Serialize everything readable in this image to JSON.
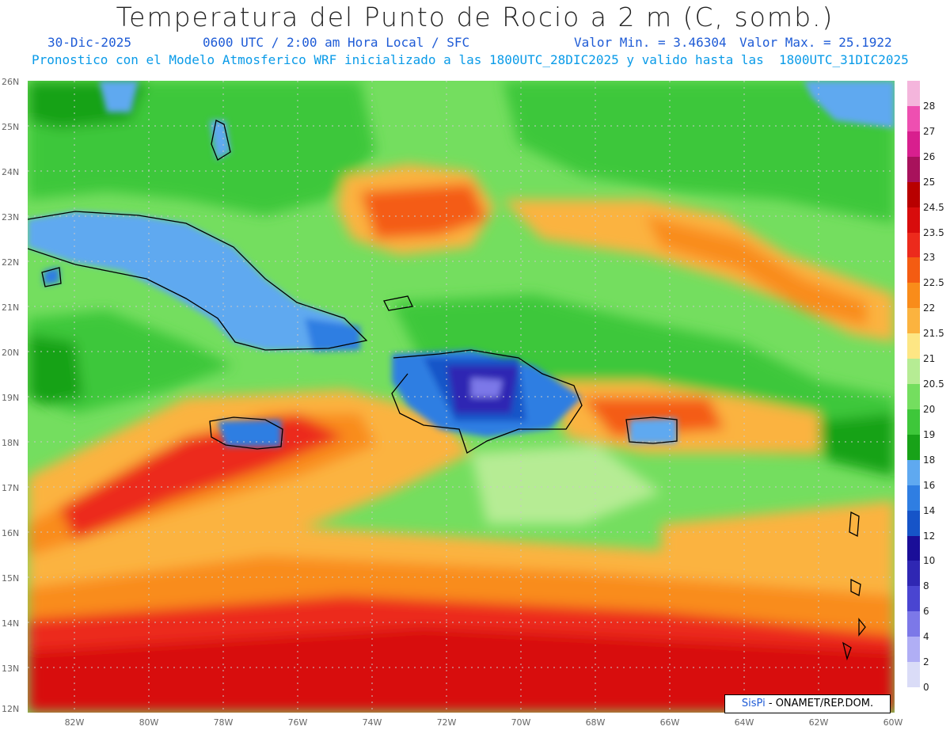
{
  "title": "Temperatura del Punto de Rocio a 2 m (C, somb.)",
  "date": "30-Dic-2025",
  "time_info": "0600 UTC / 2:00 am Hora Local / SFC",
  "min_label": "Valor Min. = 3.46304",
  "max_label": "Valor Max. = 25.1922",
  "model_info": "Pronostico con el Modelo Atmosferico WRF inicializado a las 1800UTC_28DIC2025 y valido hasta las  1800UTC_31DIC2025",
  "credit_brand": "SisPi",
  "credit_rest": " - ONAMET/REP.DOM.",
  "lat_labels": [
    "26N",
    "25N",
    "24N",
    "23N",
    "22N",
    "21N",
    "20N",
    "19N",
    "18N",
    "17N",
    "16N",
    "15N",
    "14N",
    "13N",
    "12N"
  ],
  "lon_labels": [
    "82W",
    "80W",
    "78W",
    "76W",
    "74W",
    "72W",
    "70W",
    "68W",
    "66W",
    "64W",
    "62W",
    "60W"
  ],
  "colorbar": [
    {
      "label": "28",
      "color": "#f4b5dc"
    },
    {
      "label": "27",
      "color": "#ee4fb1"
    },
    {
      "label": "26",
      "color": "#d81f8e"
    },
    {
      "label": "25",
      "color": "#a8125c"
    },
    {
      "label": "24.5",
      "color": "#b80000"
    },
    {
      "label": "23.5",
      "color": "#d80c0c"
    },
    {
      "label": "23",
      "color": "#ec2a1c"
    },
    {
      "label": "22.5",
      "color": "#f45c12"
    },
    {
      "label": "22",
      "color": "#f98c1a"
    },
    {
      "label": "21.5",
      "color": "#fbb33f"
    },
    {
      "label": "21",
      "color": "#fde684"
    },
    {
      "label": "20.5",
      "color": "#b6ec94"
    },
    {
      "label": "20",
      "color": "#74de5f"
    },
    {
      "label": "19",
      "color": "#3ec73a"
    },
    {
      "label": "18",
      "color": "#18a218"
    },
    {
      "label": "16",
      "color": "#5fa9f0"
    },
    {
      "label": "14",
      "color": "#2f7ee2"
    },
    {
      "label": "12",
      "color": "#1654c8"
    },
    {
      "label": "10",
      "color": "#1a0e98"
    },
    {
      "label": "8",
      "color": "#2f27b3"
    },
    {
      "label": "6",
      "color": "#4a45d1"
    },
    {
      "label": "4",
      "color": "#7c78e8"
    },
    {
      "label": "2",
      "color": "#b0aef5"
    },
    {
      "label": "0",
      "color": "#dadcf7"
    },
    {
      "label": "",
      "color": "#ffffff"
    }
  ]
}
